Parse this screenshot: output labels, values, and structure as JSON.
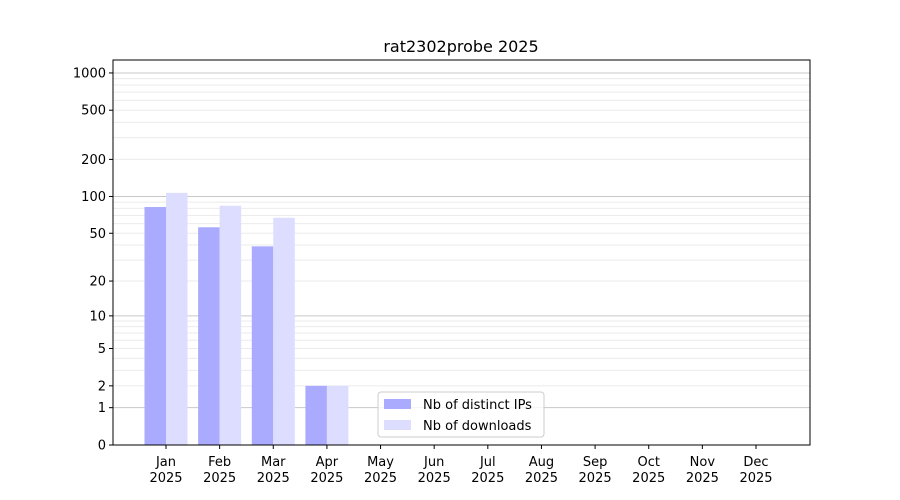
{
  "chart_data": {
    "type": "bar",
    "title": "rat2302probe 2025",
    "xlabel": "",
    "ylabel": "",
    "yscale": "log(1+y)",
    "ylim": [
      0,
      1300
    ],
    "grid": true,
    "legend_placement": "lower-center",
    "categories": [
      "Jan\n2025",
      "Feb\n2025",
      "Mar\n2025",
      "Apr\n2025",
      "May\n2025",
      "Jun\n2025",
      "Jul\n2025",
      "Aug\n2025",
      "Sep\n2025",
      "Oct\n2025",
      "Nov\n2025",
      "Dec\n2025"
    ],
    "yticks": [
      0,
      1,
      2,
      5,
      10,
      20,
      50,
      100,
      200,
      500,
      1000
    ],
    "series": [
      {
        "name": "Nb of distinct IPs",
        "color": "#aaaaff",
        "values": [
          82,
          56,
          39,
          2,
          0,
          0,
          0,
          0,
          0,
          0,
          0,
          0
        ]
      },
      {
        "name": "Nb of downloads",
        "color": "#ddddff",
        "values": [
          107,
          84,
          67,
          2,
          0,
          0,
          0,
          0,
          0,
          0,
          0,
          0
        ]
      }
    ]
  }
}
